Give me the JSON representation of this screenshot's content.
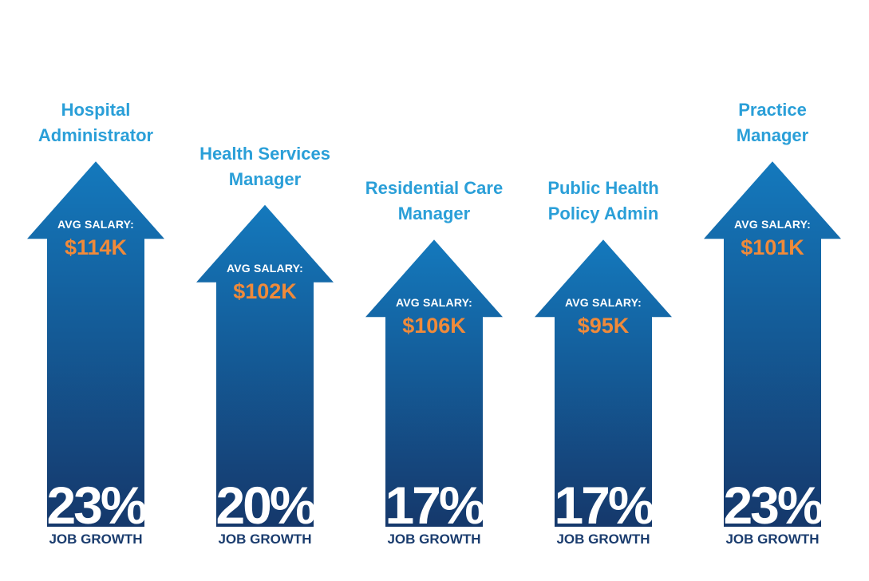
{
  "chart_data": {
    "type": "bar",
    "categories": [
      [
        "Hospital",
        "Administrator"
      ],
      [
        "Health Services",
        "Manager"
      ],
      [
        "Residential Care",
        "Manager"
      ],
      [
        "Public Health",
        "Policy Admin"
      ],
      [
        "Practice",
        "Manager"
      ]
    ],
    "salary_label": "AVG SALARY:",
    "salaries": [
      "$114K",
      "$102K",
      "$106K",
      "$95K",
      "$101K"
    ],
    "values": [
      23,
      20,
      17,
      17,
      23
    ],
    "value_suffix": "%",
    "value_label": "JOB GROWTH",
    "arrow_tip_levels": [
      0.84,
      0.74,
      0.66,
      0.66,
      0.84
    ],
    "colors": {
      "title": "#2a9fd8",
      "arrow_top": "#1479bd",
      "arrow_bottom": "#15386b",
      "salary": "#f08a3a",
      "label": "#1a3c6e"
    }
  }
}
